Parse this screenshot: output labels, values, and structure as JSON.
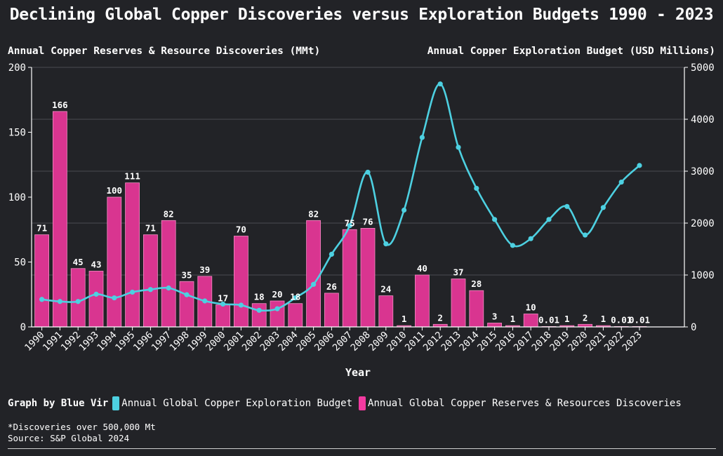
{
  "title": "Declining Global Copper Discoveries versus Exploration Budgets 1990 - 2023",
  "left_axis_title": "Annual Copper Reserves & Resource Discoveries (MMt)",
  "right_axis_title": "Annual Copper Exploration Budget (USD Millions)",
  "colors": {
    "background": "#222327",
    "bar": "#d93590",
    "line": "#4dd0e1",
    "grid": "#4a4b50",
    "axis": "#ffffff"
  },
  "legend": {
    "credit": "Graph by Blue Vir",
    "items": [
      {
        "label": "Annual Global Copper Exploration Budget",
        "color": "#4dd0e1"
      },
      {
        "label": "Annual Global Copper Reserves & Resources Discoveries",
        "color": "#f23aa0"
      }
    ]
  },
  "footnote": "*Discoveries over 500,000 Mt",
  "source": "Source: S&P Global 2024",
  "chart_data": {
    "type": "bar+line",
    "categories": [
      "1990",
      "1991",
      "1992",
      "1993",
      "1994",
      "1995",
      "1996",
      "1997",
      "1998",
      "1999",
      "2000",
      "2001",
      "2002",
      "2003",
      "2004",
      "2005",
      "2006",
      "2007",
      "2008",
      "2009",
      "2010",
      "2011",
      "2012",
      "2013",
      "2014",
      "2015",
      "2016",
      "2017",
      "2018",
      "2019",
      "2020",
      "2021",
      "2022",
      "2023"
    ],
    "series": [
      {
        "name": "Annual Global Copper Reserves & Resources Discoveries",
        "axis": "left",
        "type": "bar",
        "values": [
          71,
          166,
          45,
          43,
          100,
          111,
          71,
          82,
          35,
          39,
          17,
          70,
          18,
          20,
          18,
          82,
          26,
          75,
          76,
          24,
          1,
          40,
          2,
          37,
          28,
          3,
          1,
          10,
          0.01,
          1,
          2,
          1,
          0.01,
          0.01
        ],
        "labels": [
          "71",
          "166",
          "45",
          "43",
          "100",
          "111",
          "71",
          "82",
          "35",
          "39",
          "17",
          "70",
          "18",
          "20",
          "18",
          "82",
          "26",
          "75",
          "76",
          "24",
          "1",
          "40",
          "2",
          "37",
          "28",
          "3",
          "1",
          "10",
          "0.01",
          "1",
          "2",
          "1",
          "0.01",
          "0.01"
        ]
      },
      {
        "name": "Annual Global Copper Exploration Budget",
        "axis": "right",
        "type": "line",
        "values": [
          530,
          490,
          490,
          630,
          560,
          670,
          720,
          750,
          620,
          500,
          440,
          420,
          320,
          350,
          560,
          820,
          1400,
          1950,
          2980,
          1600,
          2250,
          3650,
          4680,
          3460,
          2670,
          2070,
          1570,
          1700,
          2070,
          2320,
          1770,
          2300,
          2790,
          3110
        ]
      }
    ],
    "xlabel": "Year",
    "ylim_left": [
      0,
      200
    ],
    "yticks_left": [
      0,
      50,
      100,
      150,
      200
    ],
    "ylim_right": [
      0,
      5000
    ],
    "yticks_right": [
      0,
      1000,
      2000,
      3000,
      4000,
      5000
    ],
    "grid": true
  }
}
